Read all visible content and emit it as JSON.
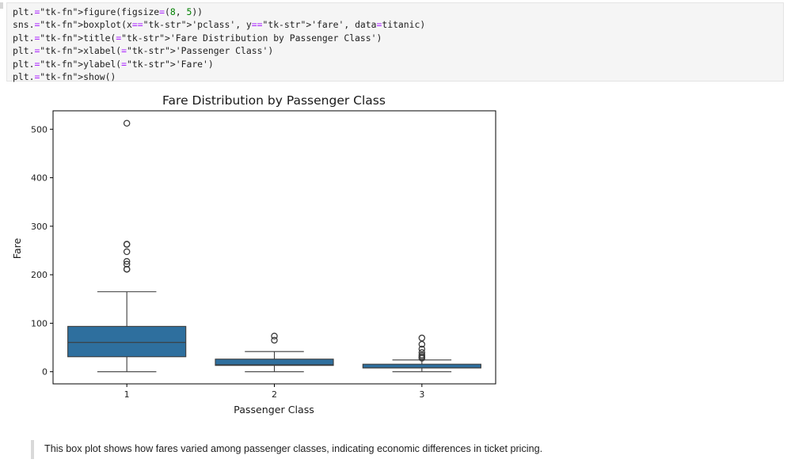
{
  "code_cell": {
    "lines": [
      "plt.figure(figsize=(8, 5))",
      "sns.boxplot(x='pclass', y='fare', data=titanic)",
      "plt.title('Fare Distribution by Passenger Class')",
      "plt.xlabel('Passenger Class')",
      "plt.ylabel('Fare')",
      "plt.show()"
    ]
  },
  "chart_data": {
    "type": "box",
    "title": "Fare Distribution by Passenger Class",
    "xlabel": "Passenger Class",
    "ylabel": "Fare",
    "categories": [
      "1",
      "2",
      "3"
    ],
    "yticks": [
      "0",
      "100",
      "200",
      "300",
      "400",
      "500"
    ],
    "ylim": [
      -25,
      538
    ],
    "grid": false,
    "box_color": "#2e6f9e",
    "boxes": [
      {
        "category": "1",
        "whisker_low": 0,
        "q1": 30.9,
        "median": 60.3,
        "q3": 93.5,
        "whisker_high": 164.9,
        "outliers": [
          512.3,
          263,
          262.4,
          247.5,
          227.5,
          221.8,
          211.5,
          211.3
        ]
      },
      {
        "category": "2",
        "whisker_low": 0,
        "q1": 13.0,
        "median": 14.25,
        "q3": 26.0,
        "whisker_high": 41.6,
        "outliers": [
          73.5,
          65.0
        ]
      },
      {
        "category": "3",
        "whisker_low": 0,
        "q1": 7.75,
        "median": 8.05,
        "q3": 15.5,
        "whisker_high": 24.2,
        "outliers": [
          69.55,
          56.5,
          46.9,
          39.7,
          34.4,
          31.4,
          29.1,
          27.9
        ]
      }
    ]
  },
  "markdown": {
    "text": "This box plot shows how fares varied among passenger classes, indicating economic differences in ticket pricing."
  }
}
